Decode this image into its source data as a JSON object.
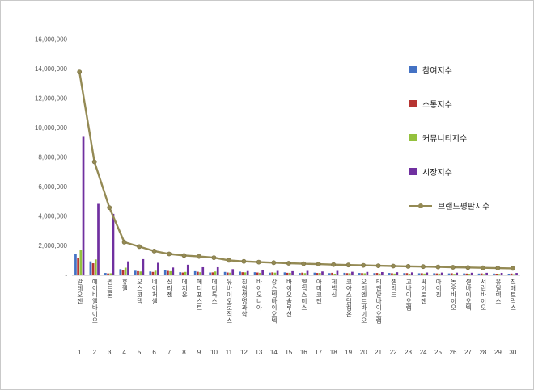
{
  "chart_data": {
    "type": "bar",
    "title": "",
    "xlabel": "",
    "ylabel": "",
    "ylim": [
      0,
      16000000
    ],
    "ytick_step": 2000000,
    "ytick_labels": [
      "-",
      "2,000,000",
      "4,000,000",
      "6,000,000",
      "8,000,000",
      "10,000,000",
      "12,000,000",
      "14,000,000",
      "16,000,000"
    ],
    "grid": false,
    "legend_position": "right",
    "categories": [
      "알테오젠",
      "에이비엘바이오",
      "펩트론",
      "휴젤",
      "오스코텍",
      "네이처셀",
      "신라젠",
      "메지온",
      "메디포스트",
      "메디톡스",
      "유바이오로직스",
      "진원생명과학",
      "바이오니아",
      "강스템바이오텍",
      "바이오솔루션",
      "헬릭스미스",
      "아미코젠",
      "제넥신",
      "코아스템켐온",
      "오리엔트바이오",
      "티앤알바이오랩",
      "셀리드",
      "고바이오랩",
      "싸이토젠",
      "아이진",
      "농우바이오",
      "셀바이오텍",
      "서린바이오",
      "유틸렉스",
      "진매트릭스"
    ],
    "rank_labels": [
      "1",
      "2",
      "3",
      "4",
      "5",
      "6",
      "7",
      "8",
      "9",
      "10",
      "11",
      "12",
      "13",
      "14",
      "15",
      "16",
      "17",
      "18",
      "19",
      "20",
      "21",
      "22",
      "23",
      "24",
      "25",
      "26",
      "27",
      "28",
      "29",
      "30"
    ],
    "series": [
      {
        "name": "참여지수",
        "type": "bar",
        "color": "#4472C4",
        "values": [
          1450000,
          950000,
          160000,
          420000,
          310000,
          260000,
          340000,
          210000,
          280000,
          190000,
          230000,
          250000,
          210000,
          180000,
          200000,
          160000,
          180000,
          150000,
          170000,
          160000,
          150000,
          160000,
          150000,
          140000,
          140000,
          130000,
          130000,
          120000,
          120000,
          110000
        ]
      },
      {
        "name": "소통지수",
        "type": "bar",
        "color": "#B63431",
        "values": [
          1200000,
          820000,
          130000,
          360000,
          280000,
          230000,
          300000,
          190000,
          240000,
          200000,
          190000,
          210000,
          190000,
          200000,
          170000,
          180000,
          160000,
          170000,
          150000,
          150000,
          160000,
          140000,
          150000,
          140000,
          130000,
          140000,
          120000,
          130000,
          110000,
          120000
        ]
      },
      {
        "name": "커뮤니티지수",
        "type": "bar",
        "color": "#94C13D",
        "values": [
          1750000,
          1080000,
          140000,
          520000,
          260000,
          310000,
          280000,
          230000,
          210000,
          260000,
          180000,
          200000,
          170000,
          180000,
          170000,
          150000,
          160000,
          110000,
          140000,
          140000,
          120000,
          120000,
          110000,
          120000,
          115000,
          100000,
          105000,
          90000,
          95000,
          80000
        ]
      },
      {
        "name": "시장지수",
        "type": "bar",
        "color": "#7030A0",
        "values": [
          9400000,
          4850000,
          4170000,
          950000,
          1100000,
          850000,
          530000,
          720000,
          550000,
          550000,
          420000,
          290000,
          330000,
          300000,
          280000,
          300000,
          260000,
          300000,
          240000,
          230000,
          220000,
          210000,
          200000,
          190000,
          185000,
          180000,
          175000,
          170000,
          165000,
          160000
        ]
      },
      {
        "name": "브랜드평판지수",
        "type": "line",
        "color": "#948A54",
        "values": [
          13800000,
          7700000,
          4600000,
          2250000,
          1950000,
          1650000,
          1450000,
          1350000,
          1280000,
          1200000,
          1020000,
          950000,
          900000,
          860000,
          820000,
          790000,
          760000,
          730000,
          700000,
          680000,
          650000,
          630000,
          610000,
          590000,
          570000,
          550000,
          530000,
          510000,
          490000,
          470000
        ]
      }
    ]
  }
}
